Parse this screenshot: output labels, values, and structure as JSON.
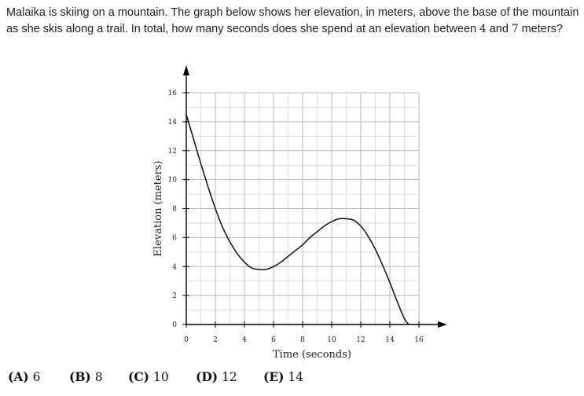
{
  "question": {
    "part1": "Malaika is skiing on a mountain. The graph below shows her elevation, in meters, above the base of the mountain as she skis along a trail. In total, how many seconds does she spend at an elevation between ",
    "num_a": "4",
    "part2": " and ",
    "num_b": "7",
    "part3": " meters?"
  },
  "chart_data": {
    "type": "line",
    "title": "",
    "xlabel": "Time (seconds)",
    "ylabel": "Elevation (meters)",
    "xlim": [
      0,
      16
    ],
    "ylim": [
      0,
      16
    ],
    "x_ticks": [
      "0",
      "2",
      "4",
      "6",
      "8",
      "10",
      "12",
      "14",
      "16"
    ],
    "y_ticks": [
      "0",
      "2",
      "4",
      "6",
      "8",
      "10",
      "12",
      "14",
      "16"
    ],
    "grid": true,
    "minor_grid_step": 1,
    "series": [
      {
        "x": [
          0,
          0.5,
          1,
          1.5,
          2,
          2.5,
          3,
          3.5,
          4,
          4.5,
          5,
          5.5,
          6,
          6.5,
          7,
          7.5,
          8,
          8.5,
          9,
          9.5,
          10,
          10.5,
          11,
          11.5,
          12,
          12.5,
          13,
          13.5,
          14,
          14.5,
          15,
          15.3
        ],
        "y": [
          14.5,
          12.8,
          11.1,
          9.5,
          8.0,
          6.7,
          5.7,
          4.9,
          4.3,
          3.9,
          3.8,
          3.8,
          4.0,
          4.3,
          4.7,
          5.1,
          5.5,
          6.0,
          6.4,
          6.8,
          7.1,
          7.3,
          7.3,
          7.2,
          6.8,
          6.1,
          5.2,
          4.1,
          2.9,
          1.6,
          0.4,
          0
        ]
      }
    ]
  },
  "choices": [
    {
      "letter": "(A)",
      "value": "6"
    },
    {
      "letter": "(B)",
      "value": "8"
    },
    {
      "letter": "(C)",
      "value": "10"
    },
    {
      "letter": "(D)",
      "value": "12"
    },
    {
      "letter": "(E)",
      "value": "14"
    }
  ]
}
